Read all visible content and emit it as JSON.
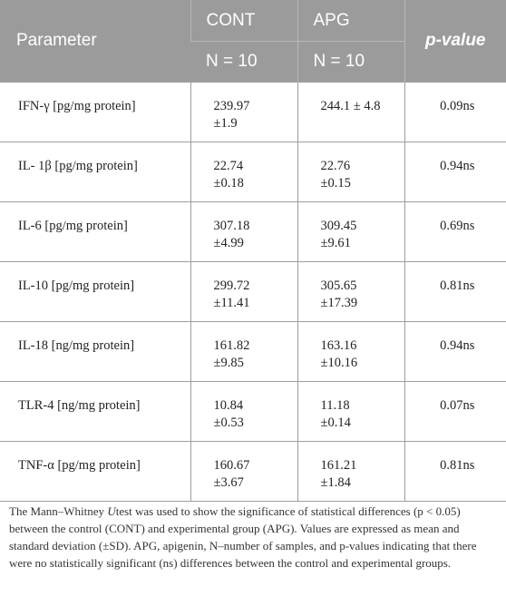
{
  "table": {
    "headers": {
      "parameter": "Parameter",
      "group1": "CONT",
      "group2": "APG",
      "pvalue": "p-value",
      "n1": "N = 10",
      "n2": "N = 10"
    },
    "rows": [
      {
        "name": "IFN-γ [pg/mg protein]",
        "cont_mean": "239.97",
        "cont_sd": "±1.9",
        "apg": "244.1 ± 4.8",
        "p": "0.09ns"
      },
      {
        "name": "IL- 1β [pg/mg protein]",
        "cont_mean": "22.74",
        "cont_sd": "±0.18",
        "apg_mean": "22.76",
        "apg_sd": "±0.15",
        "p": "0.94ns"
      },
      {
        "name": "IL-6 [pg/mg protein]",
        "cont_mean": "307.18",
        "cont_sd": "±4.99",
        "apg_mean": "309.45",
        "apg_sd": "±9.61",
        "p": "0.69ns"
      },
      {
        "name": "IL-10 [pg/mg protein]",
        "cont_mean": "299.72",
        "cont_sd": "±11.41",
        "apg_mean": "305.65",
        "apg_sd": "±17.39",
        "p": "0.81ns"
      },
      {
        "name": "IL-18 [ng/mg protein]",
        "cont_mean": "161.82",
        "cont_sd": "±9.85",
        "apg_mean": "163.16",
        "apg_sd": "±10.16",
        "p": "0.94ns"
      },
      {
        "name": "TLR-4 [ng/mg protein]",
        "cont_mean": "10.84",
        "cont_sd": "±0.53",
        "apg_mean": "11.18",
        "apg_sd": "±0.14",
        "p": "0.07ns"
      },
      {
        "name": "TNF-α [pg/mg protein]",
        "cont_mean": "160.67",
        "cont_sd": "±3.67",
        "apg_mean": "161.21",
        "apg_sd": "±1.84",
        "p": "0.81ns"
      }
    ]
  },
  "footnote": {
    "before_u": "The Mann–Whitney ",
    "u": "U",
    "after_u": "test was used to show the significance of statistical differences (p < 0.05) between the control (CONT) and experimental group (APG). Values are expressed as mean and standard deviation (±SD). APG, apigenin, N–number of samples, and p-values indicating that there were no statistically significant (ns) differences between the control and experimental groups."
  }
}
